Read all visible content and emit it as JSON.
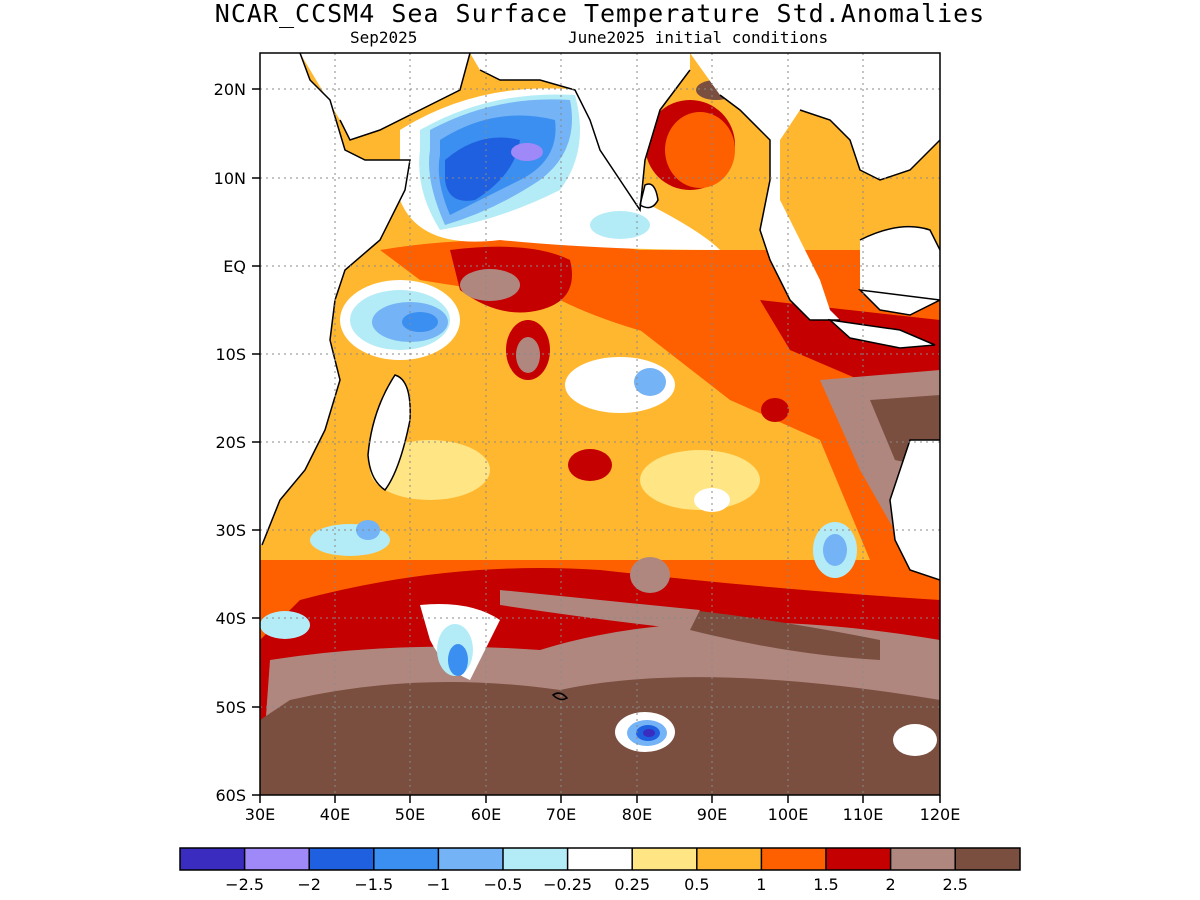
{
  "header": {
    "title": "NCAR_CCSM4 Sea Surface Temperature Std.Anomalies",
    "valid_time": "Sep2025",
    "init_conditions": "June2025 initial conditions"
  },
  "map": {
    "lat_labels": [
      "20N",
      "10N",
      "EQ",
      "10S",
      "20S",
      "30S",
      "40S",
      "50S",
      "60S"
    ],
    "lon_labels": [
      "30E",
      "40E",
      "50E",
      "60E",
      "70E",
      "80E",
      "90E",
      "100E",
      "110E",
      "120E"
    ],
    "land_color": "#ffffff",
    "coastline_color": "#000000"
  },
  "colorbar": {
    "colors": [
      "#3b2cc0",
      "#9f88f7",
      "#1f60e0",
      "#3a8ff0",
      "#74b3f5",
      "#b3ecf7",
      "#ffffff",
      "#ffe583",
      "#ffb730",
      "#fe6000",
      "#c40000",
      "#b0877f",
      "#7a4f40"
    ],
    "labels": [
      "−2.5",
      "−2",
      "−1.5",
      "−1",
      "−0.5",
      "−0.25",
      "0.25",
      "0.5",
      "1",
      "1.5",
      "2",
      "2.5"
    ]
  }
}
